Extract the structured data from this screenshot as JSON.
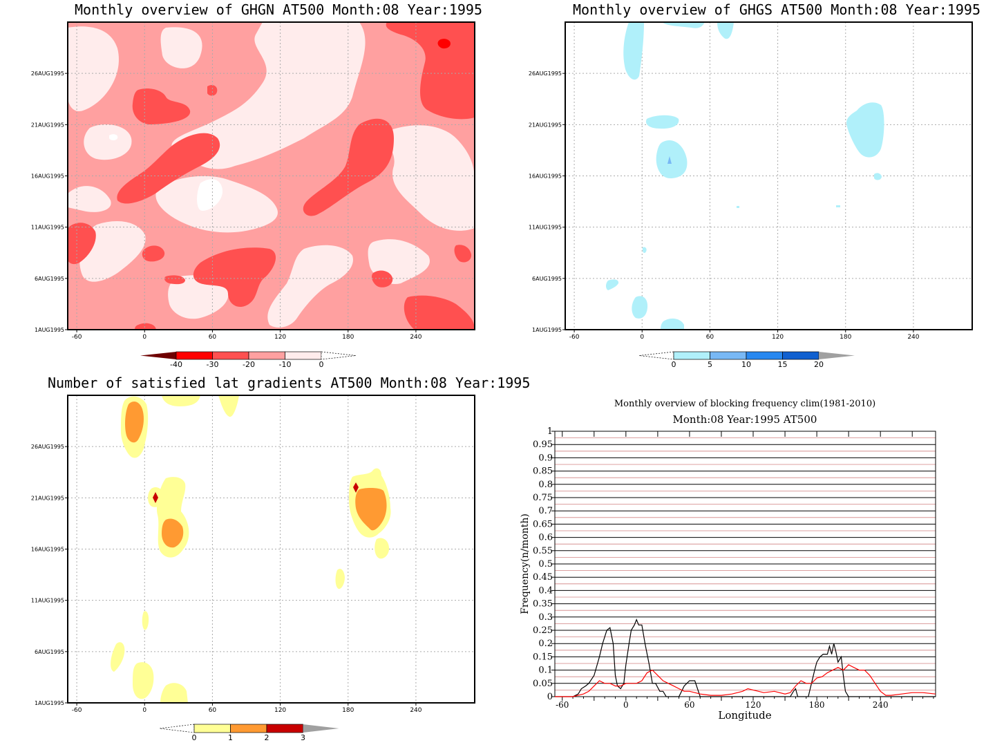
{
  "chart_data": [
    {
      "type": "heatmap",
      "title": "Monthly overview of GHGN AT500 Month:08 Year:1995",
      "x_ticks": [
        "-60",
        "0",
        "60",
        "120",
        "180",
        "240"
      ],
      "y_ticks": [
        "1AUG1995",
        "6AUG1995",
        "11AUG1995",
        "16AUG1995",
        "21AUG1995",
        "26AUG1995"
      ],
      "colorbar": {
        "levels": [
          "-40",
          "-30",
          "-20",
          "-10",
          "0"
        ],
        "colors": [
          "#6e0000",
          "#ff0000",
          "#ff5050",
          "#ffa0a0",
          "#ffecec",
          "#ffffff"
        ]
      },
      "grid": true
    },
    {
      "type": "heatmap",
      "title": "Monthly overview of GHGS AT500 Month:08 Year:1995",
      "x_ticks": [
        "-60",
        "0",
        "60",
        "120",
        "180",
        "240"
      ],
      "y_ticks": [
        "1AUG1995",
        "6AUG1995",
        "11AUG1995",
        "16AUG1995",
        "21AUG1995",
        "26AUG1995"
      ],
      "colorbar": {
        "levels": [
          "0",
          "5",
          "10",
          "15",
          "20"
        ],
        "colors": [
          "#ffffff",
          "#b0f0fa",
          "#78b8f5",
          "#2888f0",
          "#1060d0",
          "#a0a0a0"
        ]
      },
      "grid": true
    },
    {
      "type": "heatmap",
      "title": "Number of satisfied lat gradients AT500 Month:08 Year:1995",
      "x_ticks": [
        "-60",
        "0",
        "60",
        "120",
        "180",
        "240"
      ],
      "y_ticks": [
        "1AUG1995",
        "6AUG1995",
        "11AUG1995",
        "16AUG1995",
        "21AUG1995",
        "26AUG1995"
      ],
      "colorbar": {
        "levels": [
          "0",
          "1",
          "2",
          "3"
        ],
        "colors": [
          "#ffffff",
          "#ffff96",
          "#ff9a32",
          "#c80000",
          "#a0a0a0"
        ]
      },
      "grid": true
    },
    {
      "type": "line",
      "title": "Monthly overview of blocking frequency clim(1981-2010)",
      "subtitle": "Month:08 Year:1995  AT500",
      "xlabel": "Longitude",
      "ylabel": "Frequency(n/month)",
      "xlim": [
        -67,
        292
      ],
      "ylim": [
        0,
        1
      ],
      "x_ticks": [
        "-60",
        "0",
        "60",
        "120",
        "180",
        "240"
      ],
      "y_ticks": [
        "0",
        "0.05",
        "0.1",
        "0.15",
        "0.2",
        "0.25",
        "0.3",
        "0.35",
        "0.4",
        "0.45",
        "0.5",
        "0.55",
        "0.6",
        "0.65",
        "0.7",
        "0.75",
        "0.8",
        "0.85",
        "0.9",
        "0.95",
        "1"
      ],
      "series": [
        {
          "color": "#000000",
          "x": [
            -67,
            -50,
            -45,
            -42,
            -38,
            -35,
            -30,
            -25,
            -22,
            -18,
            -15,
            -12,
            -10,
            -8,
            -5,
            -2,
            0,
            3,
            5,
            8,
            10,
            12,
            15,
            18,
            22,
            25,
            28,
            32,
            35,
            38,
            40,
            45,
            50,
            55,
            60,
            65,
            70,
            75,
            80,
            90,
            100,
            110,
            120,
            130,
            140,
            150,
            155,
            158,
            160,
            162,
            165,
            170,
            172,
            175,
            178,
            180,
            183,
            186,
            188,
            190,
            192,
            194,
            196,
            198,
            200,
            203,
            205,
            207,
            210,
            220,
            240,
            260,
            292
          ],
          "values": [
            0,
            0,
            0.01,
            0.03,
            0.04,
            0.05,
            0.08,
            0.15,
            0.2,
            0.25,
            0.26,
            0.2,
            0.08,
            0.04,
            0.03,
            0.05,
            0.12,
            0.2,
            0.25,
            0.27,
            0.29,
            0.27,
            0.27,
            0.2,
            0.12,
            0.05,
            0.05,
            0.02,
            0.02,
            0,
            0,
            0,
            0,
            0.04,
            0.06,
            0.06,
            0,
            0,
            0,
            0,
            0,
            0,
            0,
            0,
            0,
            0,
            0,
            0.02,
            0.03,
            0,
            0,
            0,
            0,
            0.05,
            0.1,
            0.13,
            0.15,
            0.16,
            0.16,
            0.16,
            0.19,
            0.16,
            0.2,
            0.17,
            0.13,
            0.15,
            0.08,
            0.02,
            0,
            0,
            0,
            0,
            0
          ]
        },
        {
          "color": "#ff0000",
          "x": [
            -67,
            -50,
            -45,
            -40,
            -35,
            -30,
            -25,
            -20,
            -15,
            -10,
            -5,
            0,
            5,
            10,
            15,
            20,
            25,
            30,
            35,
            40,
            45,
            50,
            55,
            60,
            65,
            70,
            80,
            90,
            100,
            110,
            115,
            120,
            130,
            140,
            150,
            155,
            160,
            165,
            170,
            175,
            180,
            185,
            190,
            195,
            200,
            205,
            210,
            215,
            220,
            225,
            230,
            235,
            240,
            245,
            250,
            260,
            270,
            280,
            292
          ],
          "values": [
            0,
            0,
            0.005,
            0.01,
            0.02,
            0.04,
            0.06,
            0.05,
            0.05,
            0.04,
            0.04,
            0.05,
            0.05,
            0.05,
            0.06,
            0.09,
            0.1,
            0.08,
            0.06,
            0.05,
            0.04,
            0.03,
            0.02,
            0.02,
            0.015,
            0.01,
            0.005,
            0.005,
            0.01,
            0.02,
            0.03,
            0.025,
            0.015,
            0.02,
            0.01,
            0.015,
            0.04,
            0.06,
            0.05,
            0.05,
            0.07,
            0.075,
            0.09,
            0.1,
            0.11,
            0.1,
            0.12,
            0.11,
            0.1,
            0.1,
            0.08,
            0.05,
            0.02,
            0.005,
            0.005,
            0.01,
            0.015,
            0.015,
            0.01
          ]
        }
      ],
      "grid": true
    }
  ]
}
